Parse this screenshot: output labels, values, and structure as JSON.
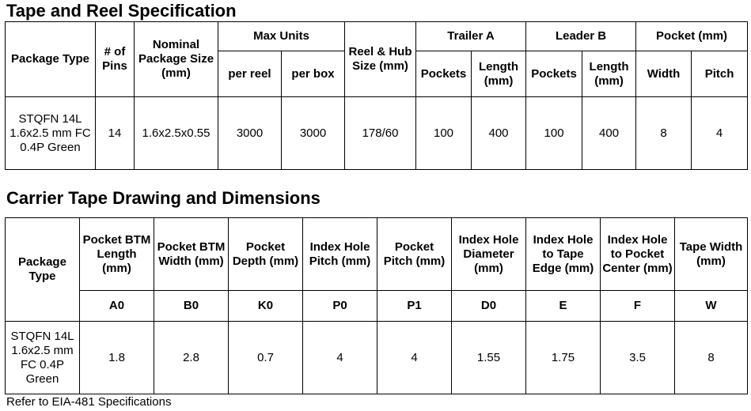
{
  "spec_section": {
    "title": "Tape and Reel Specification",
    "headers": {
      "package_type": "Package Type",
      "num_pins": "# of Pins",
      "nominal_size": "Nominal Package Size (mm)",
      "max_units": "Max Units",
      "per_reel": "per reel",
      "per_box": "per box",
      "reel_hub": "Reel & Hub Size (mm)",
      "trailer_a": "Trailer A",
      "leader_b": "Leader B",
      "pockets": "Pockets",
      "length": "Length (mm)",
      "pocket": "Pocket (mm)",
      "width": "Width",
      "pitch": "Pitch"
    },
    "row": {
      "package_type": "STQFN 14L 1.6x2.5 mm FC 0.4P Green",
      "num_pins": "14",
      "nominal_size": "1.6x2.5x0.55",
      "per_reel": "3000",
      "per_box": "3000",
      "reel_hub": "178/60",
      "trailer_pockets": "100",
      "trailer_length": "400",
      "leader_pockets": "100",
      "leader_length": "400",
      "pocket_width": "8",
      "pocket_pitch": "4"
    }
  },
  "dims_section": {
    "title": "Carrier Tape Drawing and Dimensions",
    "headers": {
      "package_type": "Package Type",
      "a0": "Pocket BTM Length (mm)",
      "b0": "Pocket BTM Width (mm)",
      "k0": "Pocket Depth (mm)",
      "p0": "Index Hole Pitch (mm)",
      "p1": "Pocket Pitch (mm)",
      "d0": "Index Hole Diameter (mm)",
      "e": "Index Hole to Tape Edge (mm)",
      "f": "Index Hole to Pocket Center (mm)",
      "w": "Tape Width (mm)"
    },
    "symbols": {
      "a0": "A0",
      "b0": "B0",
      "k0": "K0",
      "p0": "P0",
      "p1": "P1",
      "d0": "D0",
      "e": "E",
      "f": "F",
      "w": "W"
    },
    "row": {
      "package_type": "STQFN 14L 1.6x2.5 mm FC 0.4P Green",
      "a0": "1.8",
      "b0": "2.8",
      "k0": "0.7",
      "p0": "4",
      "p1": "4",
      "d0": "1.55",
      "e": "1.75",
      "f": "3.5",
      "w": "8"
    }
  },
  "footnote": "Refer to EIA-481 Specifications"
}
